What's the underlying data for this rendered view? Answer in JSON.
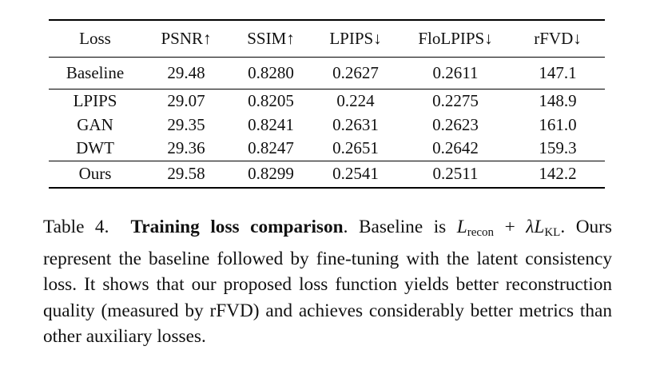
{
  "table": {
    "headers": [
      "Loss",
      "PSNR↑",
      "SSIM↑",
      "LPIPS↓",
      "FloLPIPS↓",
      "rFVD↓"
    ],
    "rows": [
      [
        "Baseline",
        "29.48",
        "0.8280",
        "0.2627",
        "0.2611",
        "147.1"
      ],
      [
        "LPIPS",
        "29.07",
        "0.8205",
        "0.224",
        "0.2275",
        "148.9"
      ],
      [
        "GAN",
        "29.35",
        "0.8241",
        "0.2631",
        "0.2623",
        "161.0"
      ],
      [
        "DWT",
        "29.36",
        "0.8247",
        "0.2651",
        "0.2642",
        "159.3"
      ],
      [
        "Ours",
        "29.58",
        "0.8299",
        "0.2541",
        "0.2511",
        "142.2"
      ]
    ]
  },
  "caption": {
    "label": "Table 4.",
    "title": "Training loss comparison",
    "lead": ". Baseline is ",
    "formula_L1": "L",
    "formula_sub1": "recon",
    "formula_op": " + ",
    "formula_lambda": "λ",
    "formula_L2": "L",
    "formula_sub2": "KL",
    "formula_end": ".",
    "body": "Ours represent the baseline followed by fine-tuning with the latent consistency loss. It shows that our proposed loss function yields better reconstruction quality (measured by rFVD) and achieves considerably better metrics than other auxiliary losses."
  }
}
